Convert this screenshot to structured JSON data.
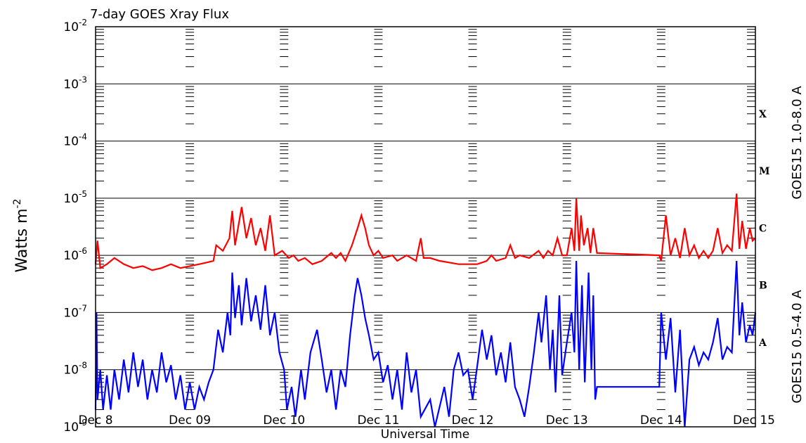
{
  "chart_data": {
    "type": "line",
    "title": "7-day GOES Xray Flux",
    "xlabel": "Universal Time",
    "ylabel": "Watts m",
    "ylabel_sup": "-2",
    "yscale": "log",
    "ylim": [
      1e-09,
      0.01
    ],
    "grid": true,
    "y_ticks": [
      {
        "value": 1e-09,
        "base": "10",
        "exp": "-9"
      },
      {
        "value": 1e-08,
        "base": "10",
        "exp": "-8"
      },
      {
        "value": 1e-07,
        "base": "10",
        "exp": "-7"
      },
      {
        "value": 1e-06,
        "base": "10",
        "exp": "-6"
      },
      {
        "value": 1e-05,
        "base": "10",
        "exp": "-5"
      },
      {
        "value": 0.0001,
        "base": "10",
        "exp": "-4"
      },
      {
        "value": 0.001,
        "base": "10",
        "exp": "-3"
      },
      {
        "value": 0.01,
        "base": "10",
        "exp": "-2"
      }
    ],
    "x_range_days": [
      0,
      7
    ],
    "x_ticks": [
      "Dec 8",
      "Dec 09",
      "Dec 10",
      "Dec 11",
      "Dec 12",
      "Dec 13",
      "Dec 14",
      "Dec 15"
    ],
    "flare_classes": [
      {
        "label": "A",
        "value": 3e-08
      },
      {
        "label": "B",
        "value": 3e-07
      },
      {
        "label": "C",
        "value": 3e-06
      },
      {
        "label": "M",
        "value": 3e-05
      },
      {
        "label": "X",
        "value": 0.0003
      }
    ],
    "data_gaps_days": [
      [
        6.75,
        6.92
      ]
    ],
    "series": [
      {
        "name": "GOES15 1.0-8.0 A",
        "color": "#ff0000",
        "points": [
          [
            0.0,
            7e-07
          ],
          [
            0.02,
            1.8e-06
          ],
          [
            0.05,
            6e-07
          ],
          [
            0.12,
            7e-07
          ],
          [
            0.2,
            9e-07
          ],
          [
            0.3,
            7e-07
          ],
          [
            0.4,
            6e-07
          ],
          [
            0.5,
            6.5e-07
          ],
          [
            0.6,
            5.5e-07
          ],
          [
            0.7,
            6e-07
          ],
          [
            0.8,
            7e-07
          ],
          [
            0.9,
            6e-07
          ],
          [
            1.0,
            6.5e-07
          ],
          [
            1.1,
            7e-07
          ],
          [
            1.18,
            7.5e-07
          ],
          [
            1.25,
            8e-07
          ],
          [
            1.28,
            1.5e-06
          ],
          [
            1.35,
            1.2e-06
          ],
          [
            1.42,
            2e-06
          ],
          [
            1.45,
            6e-06
          ],
          [
            1.48,
            1.5e-06
          ],
          [
            1.55,
            7e-06
          ],
          [
            1.6,
            2e-06
          ],
          [
            1.65,
            4.5e-06
          ],
          [
            1.7,
            1.5e-06
          ],
          [
            1.75,
            3e-06
          ],
          [
            1.8,
            1.2e-06
          ],
          [
            1.85,
            5e-06
          ],
          [
            1.9,
            1e-06
          ],
          [
            1.98,
            1.2e-06
          ],
          [
            2.05,
            9e-07
          ],
          [
            2.1,
            1e-06
          ],
          [
            2.15,
            8e-07
          ],
          [
            2.22,
            9e-07
          ],
          [
            2.3,
            7e-07
          ],
          [
            2.4,
            8e-07
          ],
          [
            2.5,
            1.1e-06
          ],
          [
            2.55,
            9e-07
          ],
          [
            2.6,
            1.1e-06
          ],
          [
            2.65,
            8e-07
          ],
          [
            2.72,
            1.5e-06
          ],
          [
            2.78,
            3e-06
          ],
          [
            2.82,
            5e-06
          ],
          [
            2.86,
            3e-06
          ],
          [
            2.9,
            1.5e-06
          ],
          [
            2.95,
            1e-06
          ],
          [
            3.0,
            1.2e-06
          ],
          [
            3.05,
            9e-07
          ],
          [
            3.15,
            1e-06
          ],
          [
            3.2,
            8e-07
          ],
          [
            3.3,
            1e-06
          ],
          [
            3.4,
            8e-07
          ],
          [
            3.45,
            2e-06
          ],
          [
            3.48,
            9e-07
          ],
          [
            3.55,
            9e-07
          ],
          [
            3.65,
            8e-07
          ],
          [
            3.75,
            7.5e-07
          ],
          [
            3.85,
            7e-07
          ],
          [
            3.95,
            7e-07
          ],
          [
            4.05,
            7e-07
          ],
          [
            4.15,
            8e-07
          ],
          [
            4.2,
            1e-06
          ],
          [
            4.25,
            8e-07
          ],
          [
            4.35,
            9e-07
          ],
          [
            4.4,
            1.5e-06
          ],
          [
            4.45,
            9e-07
          ],
          [
            4.5,
            1e-06
          ],
          [
            4.6,
            9e-07
          ],
          [
            4.7,
            1.2e-06
          ],
          [
            4.75,
            9e-07
          ],
          [
            4.8,
            1.2e-06
          ],
          [
            4.85,
            1e-06
          ],
          [
            4.9,
            2e-06
          ],
          [
            4.95,
            1e-06
          ],
          [
            5.0,
            1e-06
          ],
          [
            5.05,
            3e-06
          ],
          [
            5.08,
            1.2e-06
          ],
          [
            5.1,
            1e-05
          ],
          [
            5.13,
            1.2e-06
          ],
          [
            5.15,
            5e-06
          ],
          [
            5.18,
            1.5e-06
          ],
          [
            5.22,
            3e-06
          ],
          [
            5.25,
            1.1e-06
          ],
          [
            5.28,
            3e-06
          ],
          [
            5.32,
            1.1e-06
          ],
          [
            5.98,
            1e-06
          ],
          [
            6.0,
            8e-07
          ],
          [
            6.05,
            5e-06
          ],
          [
            6.1,
            1e-06
          ],
          [
            6.15,
            2e-06
          ],
          [
            6.2,
            9e-07
          ],
          [
            6.25,
            3e-06
          ],
          [
            6.3,
            1e-06
          ],
          [
            6.35,
            1.5e-06
          ],
          [
            6.4,
            9e-07
          ],
          [
            6.45,
            1.2e-06
          ],
          [
            6.5,
            9e-07
          ],
          [
            6.55,
            1.2e-06
          ],
          [
            6.6,
            3e-06
          ],
          [
            6.65,
            1.1e-06
          ],
          [
            6.7,
            1.5e-06
          ],
          [
            6.75,
            1.2e-06
          ],
          [
            6.8,
            1.2e-05
          ],
          [
            6.83,
            1.3e-06
          ],
          [
            6.86,
            4e-06
          ],
          [
            6.9,
            1.3e-06
          ],
          [
            6.94,
            3e-06
          ],
          [
            6.97,
            1.8e-06
          ],
          [
            7.0,
            2e-06
          ]
        ]
      },
      {
        "name": "GOES15 0.5-4.0 A",
        "color": "#0000ff",
        "points": [
          [
            0.0,
            2e-09
          ],
          [
            0.01,
            1e-07
          ],
          [
            0.02,
            3e-09
          ],
          [
            0.05,
            1e-08
          ],
          [
            0.08,
            2e-09
          ],
          [
            0.12,
            8e-09
          ],
          [
            0.16,
            2e-09
          ],
          [
            0.2,
            1e-08
          ],
          [
            0.25,
            3e-09
          ],
          [
            0.3,
            1.5e-08
          ],
          [
            0.35,
            4e-09
          ],
          [
            0.4,
            2e-08
          ],
          [
            0.45,
            5e-09
          ],
          [
            0.5,
            1.5e-08
          ],
          [
            0.55,
            3e-09
          ],
          [
            0.6,
            1e-08
          ],
          [
            0.65,
            4e-09
          ],
          [
            0.7,
            2e-08
          ],
          [
            0.75,
            6e-09
          ],
          [
            0.8,
            1.2e-08
          ],
          [
            0.85,
            3e-09
          ],
          [
            0.9,
            8e-09
          ],
          [
            0.95,
            2e-09
          ],
          [
            1.0,
            6e-09
          ],
          [
            1.05,
            2e-09
          ],
          [
            1.1,
            5e-09
          ],
          [
            1.15,
            3e-09
          ],
          [
            1.2,
            6e-09
          ],
          [
            1.25,
            1e-08
          ],
          [
            1.3,
            5e-08
          ],
          [
            1.35,
            2e-08
          ],
          [
            1.4,
            1e-07
          ],
          [
            1.43,
            4e-08
          ],
          [
            1.45,
            5e-07
          ],
          [
            1.48,
            8e-08
          ],
          [
            1.52,
            3e-07
          ],
          [
            1.55,
            6e-08
          ],
          [
            1.6,
            4e-07
          ],
          [
            1.65,
            7e-08
          ],
          [
            1.7,
            2e-07
          ],
          [
            1.75,
            5e-08
          ],
          [
            1.8,
            3e-07
          ],
          [
            1.85,
            4e-08
          ],
          [
            1.9,
            1e-07
          ],
          [
            1.95,
            2e-08
          ],
          [
            2.0,
            1e-08
          ],
          [
            2.03,
            2e-09
          ],
          [
            2.08,
            5e-09
          ],
          [
            2.12,
            1.5e-09
          ],
          [
            2.18,
            1e-08
          ],
          [
            2.22,
            3e-09
          ],
          [
            2.28,
            2e-08
          ],
          [
            2.35,
            5e-08
          ],
          [
            2.4,
            1.5e-08
          ],
          [
            2.45,
            4e-09
          ],
          [
            2.5,
            1e-08
          ],
          [
            2.55,
            2e-09
          ],
          [
            2.6,
            1e-08
          ],
          [
            2.65,
            5e-09
          ],
          [
            2.7,
            4e-08
          ],
          [
            2.75,
            2e-07
          ],
          [
            2.78,
            4e-07
          ],
          [
            2.82,
            2e-07
          ],
          [
            2.86,
            8e-08
          ],
          [
            2.9,
            4e-08
          ],
          [
            2.95,
            1.5e-08
          ],
          [
            3.0,
            2e-08
          ],
          [
            3.05,
            6e-09
          ],
          [
            3.1,
            1.2e-08
          ],
          [
            3.15,
            3e-09
          ],
          [
            3.2,
            1e-08
          ],
          [
            3.25,
            2e-09
          ],
          [
            3.3,
            2e-08
          ],
          [
            3.35,
            4e-09
          ],
          [
            3.4,
            1e-08
          ],
          [
            3.45,
            1.5e-09
          ],
          [
            3.55,
            3e-09
          ],
          [
            3.6,
            1e-09
          ],
          [
            3.7,
            5e-09
          ],
          [
            3.75,
            1.5e-09
          ],
          [
            3.8,
            1e-08
          ],
          [
            3.85,
            2e-08
          ],
          [
            3.9,
            8e-09
          ],
          [
            3.95,
            1e-08
          ],
          [
            4.0,
            3e-09
          ],
          [
            4.05,
            1.2e-08
          ],
          [
            4.1,
            5e-08
          ],
          [
            4.15,
            1.5e-08
          ],
          [
            4.2,
            4e-08
          ],
          [
            4.25,
            8e-09
          ],
          [
            4.3,
            2e-08
          ],
          [
            4.35,
            6e-09
          ],
          [
            4.4,
            3e-08
          ],
          [
            4.45,
            5e-09
          ],
          [
            4.5,
            3e-09
          ],
          [
            4.55,
            1.5e-09
          ],
          [
            4.6,
            5e-09
          ],
          [
            4.65,
            2e-08
          ],
          [
            4.7,
            1e-07
          ],
          [
            4.73,
            3e-08
          ],
          [
            4.78,
            2e-07
          ],
          [
            4.82,
            1e-08
          ],
          [
            4.85,
            5e-08
          ],
          [
            4.88,
            4e-09
          ],
          [
            4.92,
            2e-07
          ],
          [
            4.95,
            8e-09
          ],
          [
            5.0,
            3e-08
          ],
          [
            5.05,
            1e-07
          ],
          [
            5.08,
            2e-08
          ],
          [
            5.1,
            8e-07
          ],
          [
            5.13,
            1e-08
          ],
          [
            5.16,
            3e-07
          ],
          [
            5.19,
            6e-09
          ],
          [
            5.23,
            5e-07
          ],
          [
            5.26,
            1e-08
          ],
          [
            5.28,
            2e-07
          ],
          [
            5.3,
            3e-09
          ],
          [
            5.32,
            5e-09
          ],
          [
            5.98,
            5e-09
          ],
          [
            6.0,
            1e-07
          ],
          [
            6.05,
            1.5e-08
          ],
          [
            6.1,
            8e-08
          ],
          [
            6.15,
            4e-09
          ],
          [
            6.2,
            5e-08
          ],
          [
            6.25,
            1e-09
          ],
          [
            6.3,
            1.5e-08
          ],
          [
            6.35,
            2.5e-08
          ],
          [
            6.4,
            1.2e-08
          ],
          [
            6.45,
            2e-08
          ],
          [
            6.5,
            1.5e-08
          ],
          [
            6.55,
            3e-08
          ],
          [
            6.6,
            8e-08
          ],
          [
            6.65,
            1.5e-08
          ],
          [
            6.7,
            2.5e-08
          ],
          [
            6.75,
            2e-08
          ],
          [
            6.8,
            8e-07
          ],
          [
            6.83,
            4e-08
          ],
          [
            6.86,
            1.5e-07
          ],
          [
            6.9,
            3e-08
          ],
          [
            6.94,
            6e-08
          ],
          [
            6.97,
            4e-08
          ],
          [
            7.0,
            1e-07
          ]
        ]
      }
    ]
  }
}
